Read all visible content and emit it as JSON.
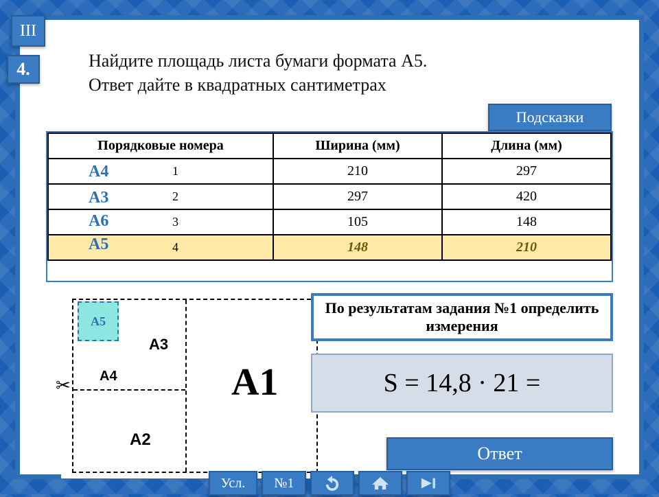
{
  "colors": {
    "primary": "#3a7cc4",
    "border": "#2a5d95",
    "highlight": "#ffe9a6",
    "a5box": "#8ee6e0",
    "formula_bg": "#d4dde8"
  },
  "badges": {
    "roman": "III",
    "number": "4."
  },
  "question_line1": "Найдите площадь листа бумаги формата А5.",
  "question_line2": "Ответ дайте в квадратных сантиметрах",
  "hints_label": "Подсказки",
  "table": {
    "columns": [
      "Порядковые номера",
      "Ширина (мм)",
      "Длина (мм)"
    ],
    "rows": [
      {
        "format": "А4",
        "idx": "1",
        "width": "210",
        "length": "297",
        "hl": false
      },
      {
        "format": "А3",
        "idx": "2",
        "width": "297",
        "length": "420",
        "hl": false
      },
      {
        "format": "А6",
        "idx": "3",
        "width": "105",
        "length": "148",
        "hl": false
      },
      {
        "format": "А5",
        "idx": "4",
        "width": "148",
        "length": "210",
        "hl": true
      }
    ]
  },
  "diagram": {
    "a5": "А5",
    "a4": "А4",
    "a3": "А3",
    "a2": "А2",
    "a1": "А1",
    "scissors": "✂"
  },
  "hint_box": "По результатам задания №1 определить измерения",
  "formula": "S  = 14,8 · 21 =",
  "answer_label": "Ответ",
  "nav": {
    "cond": "Усл.",
    "no1": "№1"
  }
}
